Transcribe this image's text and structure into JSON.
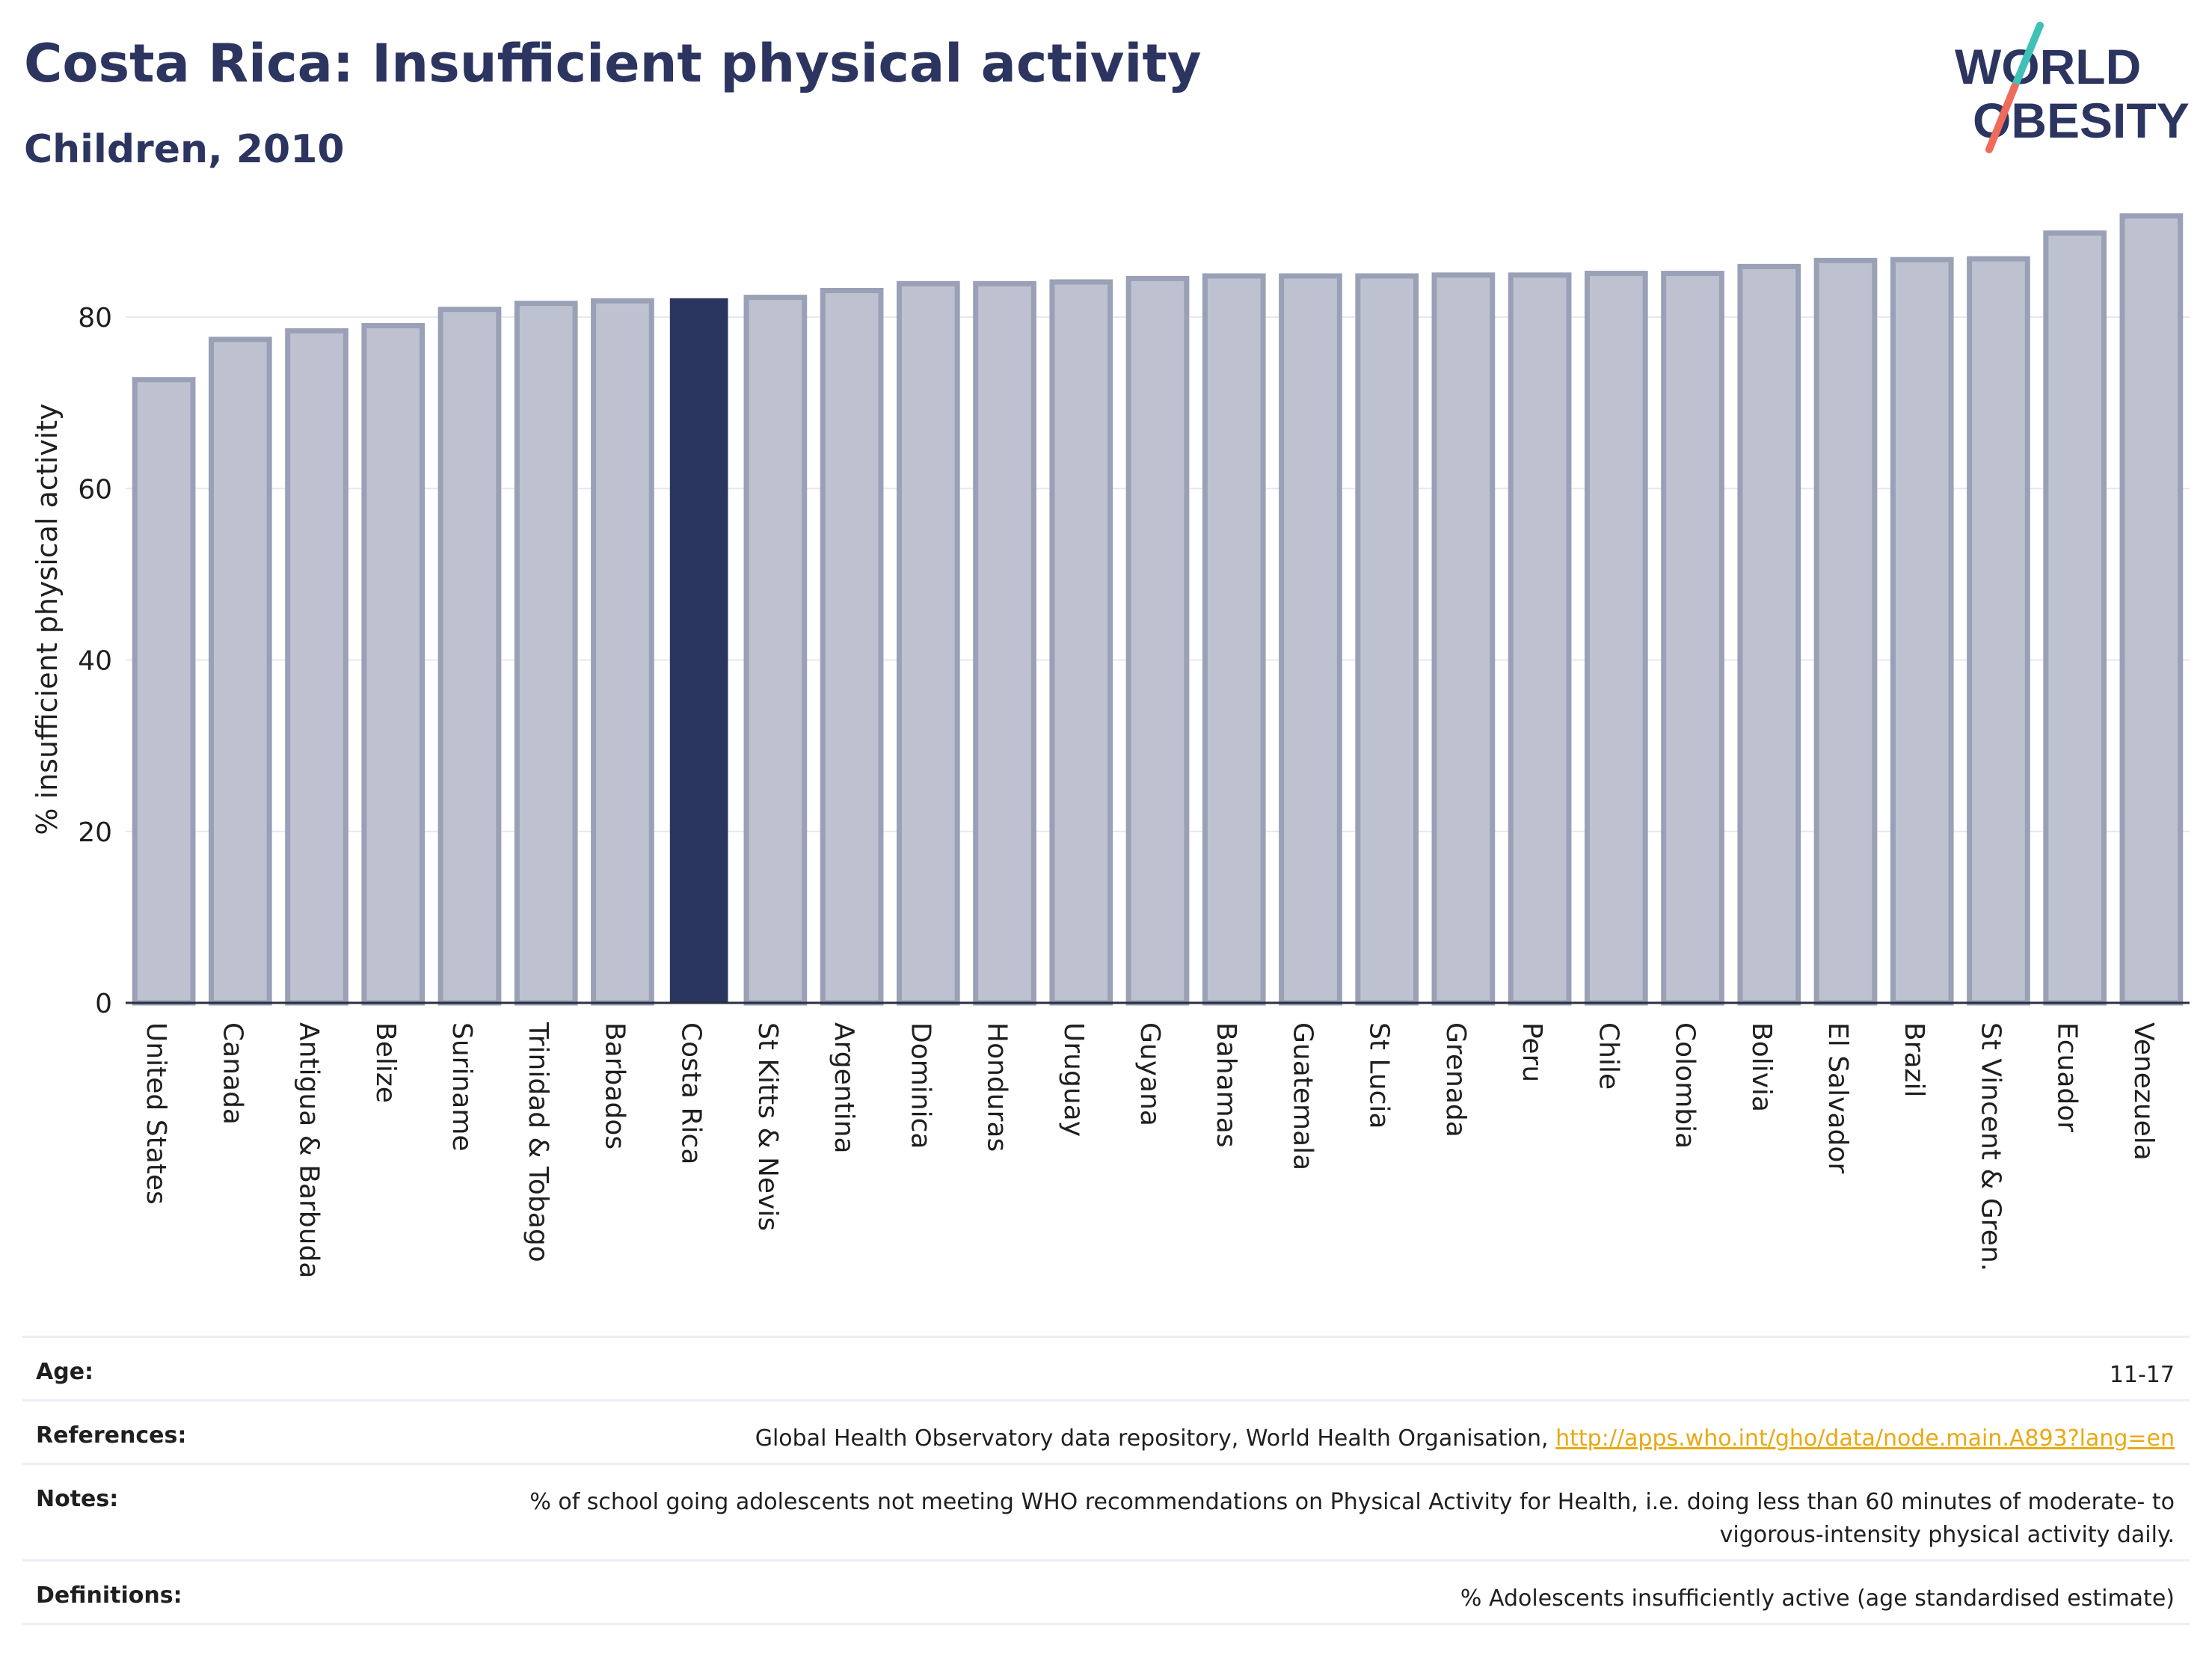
{
  "header": {
    "title": "Costa Rica: Insufficient physical activity",
    "subtitle": "Children, 2010"
  },
  "logo": {
    "line1": "WORLD",
    "line2": "OBESITY",
    "colors": {
      "text": "#2c3560",
      "accent_teal": "#3fc1b8",
      "accent_red": "#ef6b5a"
    }
  },
  "chart_data": {
    "type": "bar",
    "ylabel": "% insufficient physical activity",
    "xlabel": "",
    "ylim": [
      0,
      93
    ],
    "yticks": [
      0,
      20,
      40,
      60,
      80
    ],
    "grid": true,
    "highlight": "Costa Rica",
    "colors": {
      "bar": "#bec2d0",
      "bar_edge": "#9aa0b6",
      "highlight": "#2a3560"
    },
    "categories": [
      "United States",
      "Canada",
      "Antigua & Barbuda",
      "Belize",
      "Suriname",
      "Trinidad & Tobago",
      "Barbados",
      "Costa Rica",
      "St Kitts & Nevis",
      "Argentina",
      "Dominica",
      "Honduras",
      "Uruguay",
      "Guyana",
      "Bahamas",
      "Guatemala",
      "St Lucia",
      "Grenada",
      "Peru",
      "Chile",
      "Colombia",
      "Bolivia",
      "El Salvador",
      "Brazil",
      "St Vincent & Gren.",
      "Ecuador",
      "Venezuela"
    ],
    "values": [
      72.7,
      77.4,
      78.4,
      79.0,
      80.9,
      81.6,
      81.9,
      82.2,
      82.3,
      83.1,
      83.9,
      83.9,
      84.1,
      84.5,
      84.8,
      84.8,
      84.8,
      84.9,
      84.9,
      85.1,
      85.1,
      85.9,
      86.6,
      86.7,
      86.8,
      89.8,
      91.8
    ]
  },
  "meta": {
    "age_label": "Age:",
    "age_value": "11-17",
    "references_label": "References:",
    "references_text": "Global Health Observatory data repository, World Health Organisation,",
    "references_link": "http://apps.who.int/gho/data/node.main.A893?lang=en",
    "notes_label": "Notes:",
    "notes_value": "% of school going adolescents not meeting WHO recommendations on Physical Activity for Health, i.e. doing less than 60 minutes of moderate- to vigorous-intensity physical activity daily.",
    "definitions_label": "Definitions:",
    "definitions_value": "% Adolescents insufficiently active (age standardised estimate)"
  }
}
